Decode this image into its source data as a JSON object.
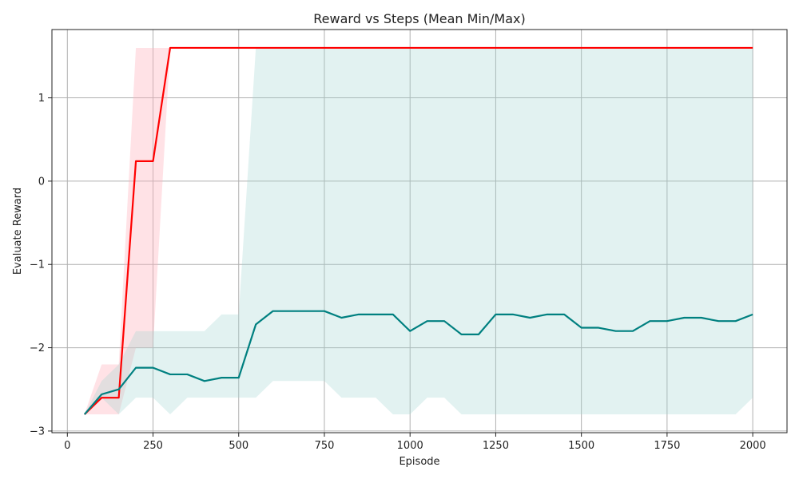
{
  "chart_data": {
    "type": "line",
    "title": "Reward vs Steps (Mean Min/Max)",
    "xlabel": "Episode",
    "ylabel": "Evaluate Reward",
    "xlim": [
      -45,
      2100
    ],
    "ylim": [
      -3.02,
      1.82
    ],
    "xticks": [
      0,
      250,
      500,
      750,
      1000,
      1250,
      1500,
      1750,
      2000
    ],
    "xtick_labels": [
      "0",
      "250",
      "500",
      "750",
      "1000",
      "1250",
      "1500",
      "1750",
      "2000"
    ],
    "yticks": [
      -3,
      -2,
      -1,
      0,
      1
    ],
    "ytick_labels": [
      "−3",
      "−2",
      "−1",
      "0",
      "1"
    ],
    "grid": true,
    "legend": "none",
    "x": [
      50,
      100,
      150,
      200,
      250,
      300,
      350,
      400,
      450,
      500,
      550,
      600,
      650,
      700,
      750,
      800,
      850,
      900,
      950,
      1000,
      1050,
      1100,
      1150,
      1200,
      1250,
      1300,
      1350,
      1400,
      1450,
      1500,
      1550,
      1600,
      1650,
      1700,
      1750,
      1800,
      1850,
      1900,
      1950,
      2000
    ],
    "series": [
      {
        "color": "#ff0000",
        "band_color": "#ffb3bd",
        "mean": [
          -2.8,
          -2.6,
          -2.6,
          0.24,
          0.24,
          1.6,
          1.6,
          1.6,
          1.6,
          1.6,
          1.6,
          1.6,
          1.6,
          1.6,
          1.6,
          1.6,
          1.6,
          1.6,
          1.6,
          1.6,
          1.6,
          1.6,
          1.6,
          1.6,
          1.6,
          1.6,
          1.6,
          1.6,
          1.6,
          1.6,
          1.6,
          1.6,
          1.6,
          1.6,
          1.6,
          1.6,
          1.6,
          1.6,
          1.6,
          1.6
        ],
        "min": [
          -2.8,
          -2.8,
          -2.8,
          -2.0,
          -2.0,
          1.6,
          1.6,
          1.6,
          1.6,
          1.6,
          1.6,
          1.6,
          1.6,
          1.6,
          1.6,
          1.6,
          1.6,
          1.6,
          1.6,
          1.6,
          1.6,
          1.6,
          1.6,
          1.6,
          1.6,
          1.6,
          1.6,
          1.6,
          1.6,
          1.6,
          1.6,
          1.6,
          1.6,
          1.6,
          1.6,
          1.6,
          1.6,
          1.6,
          1.6,
          1.6
        ],
        "max": [
          -2.8,
          -2.2,
          -2.2,
          1.6,
          1.6,
          1.6,
          1.6,
          1.6,
          1.6,
          1.6,
          1.6,
          1.6,
          1.6,
          1.6,
          1.6,
          1.6,
          1.6,
          1.6,
          1.6,
          1.6,
          1.6,
          1.6,
          1.6,
          1.6,
          1.6,
          1.6,
          1.6,
          1.6,
          1.6,
          1.6,
          1.6,
          1.6,
          1.6,
          1.6,
          1.6,
          1.6,
          1.6,
          1.6,
          1.6,
          1.6
        ]
      },
      {
        "color": "#008080",
        "band_color": "#9fd3cf",
        "mean": [
          -2.8,
          -2.56,
          -2.5,
          -2.24,
          -2.24,
          -2.32,
          -2.32,
          -2.4,
          -2.36,
          -2.36,
          -1.72,
          -1.56,
          -1.56,
          -1.56,
          -1.56,
          -1.64,
          -1.6,
          -1.6,
          -1.6,
          -1.8,
          -1.68,
          -1.68,
          -1.84,
          -1.84,
          -1.6,
          -1.6,
          -1.64,
          -1.6,
          -1.6,
          -1.76,
          -1.76,
          -1.8,
          -1.8,
          -1.68,
          -1.68,
          -1.64,
          -1.64,
          -1.68,
          -1.68,
          -1.6
        ],
        "min": [
          -2.8,
          -2.6,
          -2.8,
          -2.6,
          -2.6,
          -2.8,
          -2.6,
          -2.6,
          -2.6,
          -2.6,
          -2.6,
          -2.4,
          -2.4,
          -2.4,
          -2.4,
          -2.6,
          -2.6,
          -2.6,
          -2.8,
          -2.8,
          -2.6,
          -2.6,
          -2.8,
          -2.8,
          -2.8,
          -2.8,
          -2.8,
          -2.8,
          -2.8,
          -2.8,
          -2.8,
          -2.8,
          -2.8,
          -2.8,
          -2.8,
          -2.8,
          -2.8,
          -2.8,
          -2.8,
          -2.6
        ],
        "max": [
          -2.8,
          -2.4,
          -2.2,
          -1.8,
          -1.8,
          -1.8,
          -1.8,
          -1.8,
          -1.6,
          -1.6,
          1.6,
          1.6,
          1.6,
          1.6,
          1.6,
          1.6,
          1.6,
          1.6,
          1.6,
          1.6,
          1.6,
          1.6,
          1.6,
          1.6,
          1.6,
          1.6,
          1.6,
          1.6,
          1.6,
          1.6,
          1.6,
          1.6,
          1.6,
          1.6,
          1.6,
          1.6,
          1.6,
          1.6,
          1.6,
          1.6
        ]
      }
    ]
  }
}
